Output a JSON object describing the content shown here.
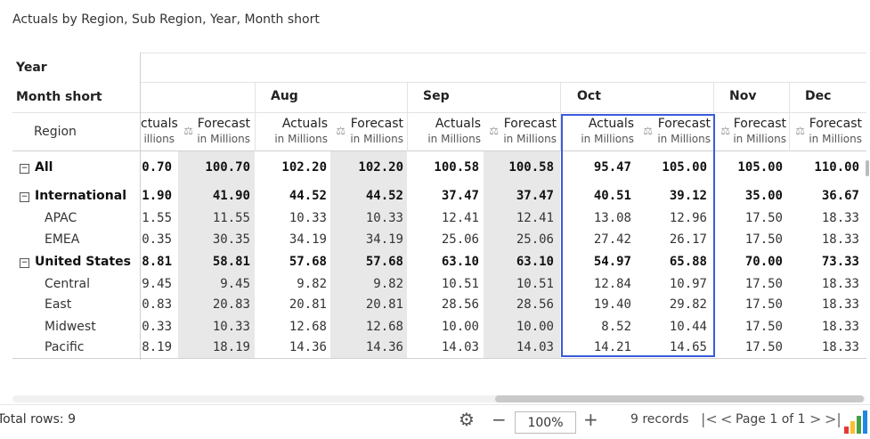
{
  "title": "Actuals by Region, Sub Region, Year, Month short",
  "headers": {
    "year": "Year",
    "month_short": "Month short",
    "region": "Region"
  },
  "months": [
    "Aug",
    "Sep",
    "Oct",
    "Nov",
    "Dec"
  ],
  "columns": [
    {
      "top": "ctuals",
      "sub": "illions",
      "icon": false
    },
    {
      "top": "Forecast",
      "sub": "in Millions",
      "icon": true
    },
    {
      "top": "Actuals",
      "sub": "in Millions",
      "icon": false
    },
    {
      "top": "Forecast",
      "sub": "in Millions",
      "icon": true
    },
    {
      "top": "Actuals",
      "sub": "in Millions",
      "icon": false
    },
    {
      "top": "Forecast",
      "sub": "in Millions",
      "icon": true
    },
    {
      "top": "Actuals",
      "sub": "in Millions",
      "icon": false
    },
    {
      "top": "Forecast",
      "sub": "in Millions",
      "icon": true
    },
    {
      "top": "Forecast",
      "sub": "in Millions",
      "icon": true
    },
    {
      "top": "Forecast",
      "sub": "in Millions",
      "icon": true
    }
  ],
  "rows": [
    {
      "label": "All",
      "bold": true,
      "toggle": true,
      "values": [
        "0.70",
        "100.70",
        "102.20",
        "102.20",
        "100.58",
        "100.58",
        "95.47",
        "105.00",
        "105.00",
        "110.00"
      ]
    },
    {
      "label": "International",
      "bold": true,
      "toggle": true,
      "values": [
        "1.90",
        "41.90",
        "44.52",
        "44.52",
        "37.47",
        "37.47",
        "40.51",
        "39.12",
        "35.00",
        "36.67"
      ]
    },
    {
      "label": "APAC",
      "bold": false,
      "toggle": false,
      "values": [
        "1.55",
        "11.55",
        "10.33",
        "10.33",
        "12.41",
        "12.41",
        "13.08",
        "12.96",
        "17.50",
        "18.33"
      ]
    },
    {
      "label": "EMEA",
      "bold": false,
      "toggle": false,
      "values": [
        "0.35",
        "30.35",
        "34.19",
        "34.19",
        "25.06",
        "25.06",
        "27.42",
        "26.17",
        "17.50",
        "18.33"
      ]
    },
    {
      "label": "United States",
      "bold": true,
      "toggle": true,
      "values": [
        "8.81",
        "58.81",
        "57.68",
        "57.68",
        "63.10",
        "63.10",
        "54.97",
        "65.88",
        "70.00",
        "73.33"
      ]
    },
    {
      "label": "Central",
      "bold": false,
      "toggle": false,
      "values": [
        "9.45",
        "9.45",
        "9.82",
        "9.82",
        "10.51",
        "10.51",
        "12.84",
        "10.97",
        "17.50",
        "18.33"
      ]
    },
    {
      "label": "East",
      "bold": false,
      "toggle": false,
      "values": [
        "0.83",
        "20.83",
        "20.81",
        "20.81",
        "28.56",
        "28.56",
        "19.40",
        "29.82",
        "17.50",
        "18.33"
      ]
    },
    {
      "label": "Midwest",
      "bold": false,
      "toggle": false,
      "values": [
        "0.33",
        "10.33",
        "12.68",
        "12.68",
        "10.00",
        "10.00",
        "8.52",
        "10.44",
        "17.50",
        "18.33"
      ]
    },
    {
      "label": "Pacific",
      "bold": false,
      "toggle": false,
      "values": [
        "8.19",
        "18.19",
        "14.36",
        "14.36",
        "14.03",
        "14.03",
        "14.21",
        "14.65",
        "17.50",
        "18.33"
      ]
    }
  ],
  "footer": {
    "total_rows": "Total rows: 9",
    "zoom": "100%",
    "records": "9 records",
    "page": "Page 1 of 1"
  },
  "icons": {
    "settings": "gear-icon",
    "zoom_out": "minus-icon",
    "zoom_in": "plus-icon",
    "first": "first-page-icon",
    "prev": "prev-page-icon",
    "next": "next-page-icon",
    "last": "last-page-icon",
    "scale": "balance-scale-icon",
    "collapse": "collapse-toggle-icon",
    "brand": "bar-chart-logo-icon"
  },
  "colors": {
    "highlight": "#3b5bdb",
    "shade": "#e8e8e8"
  }
}
